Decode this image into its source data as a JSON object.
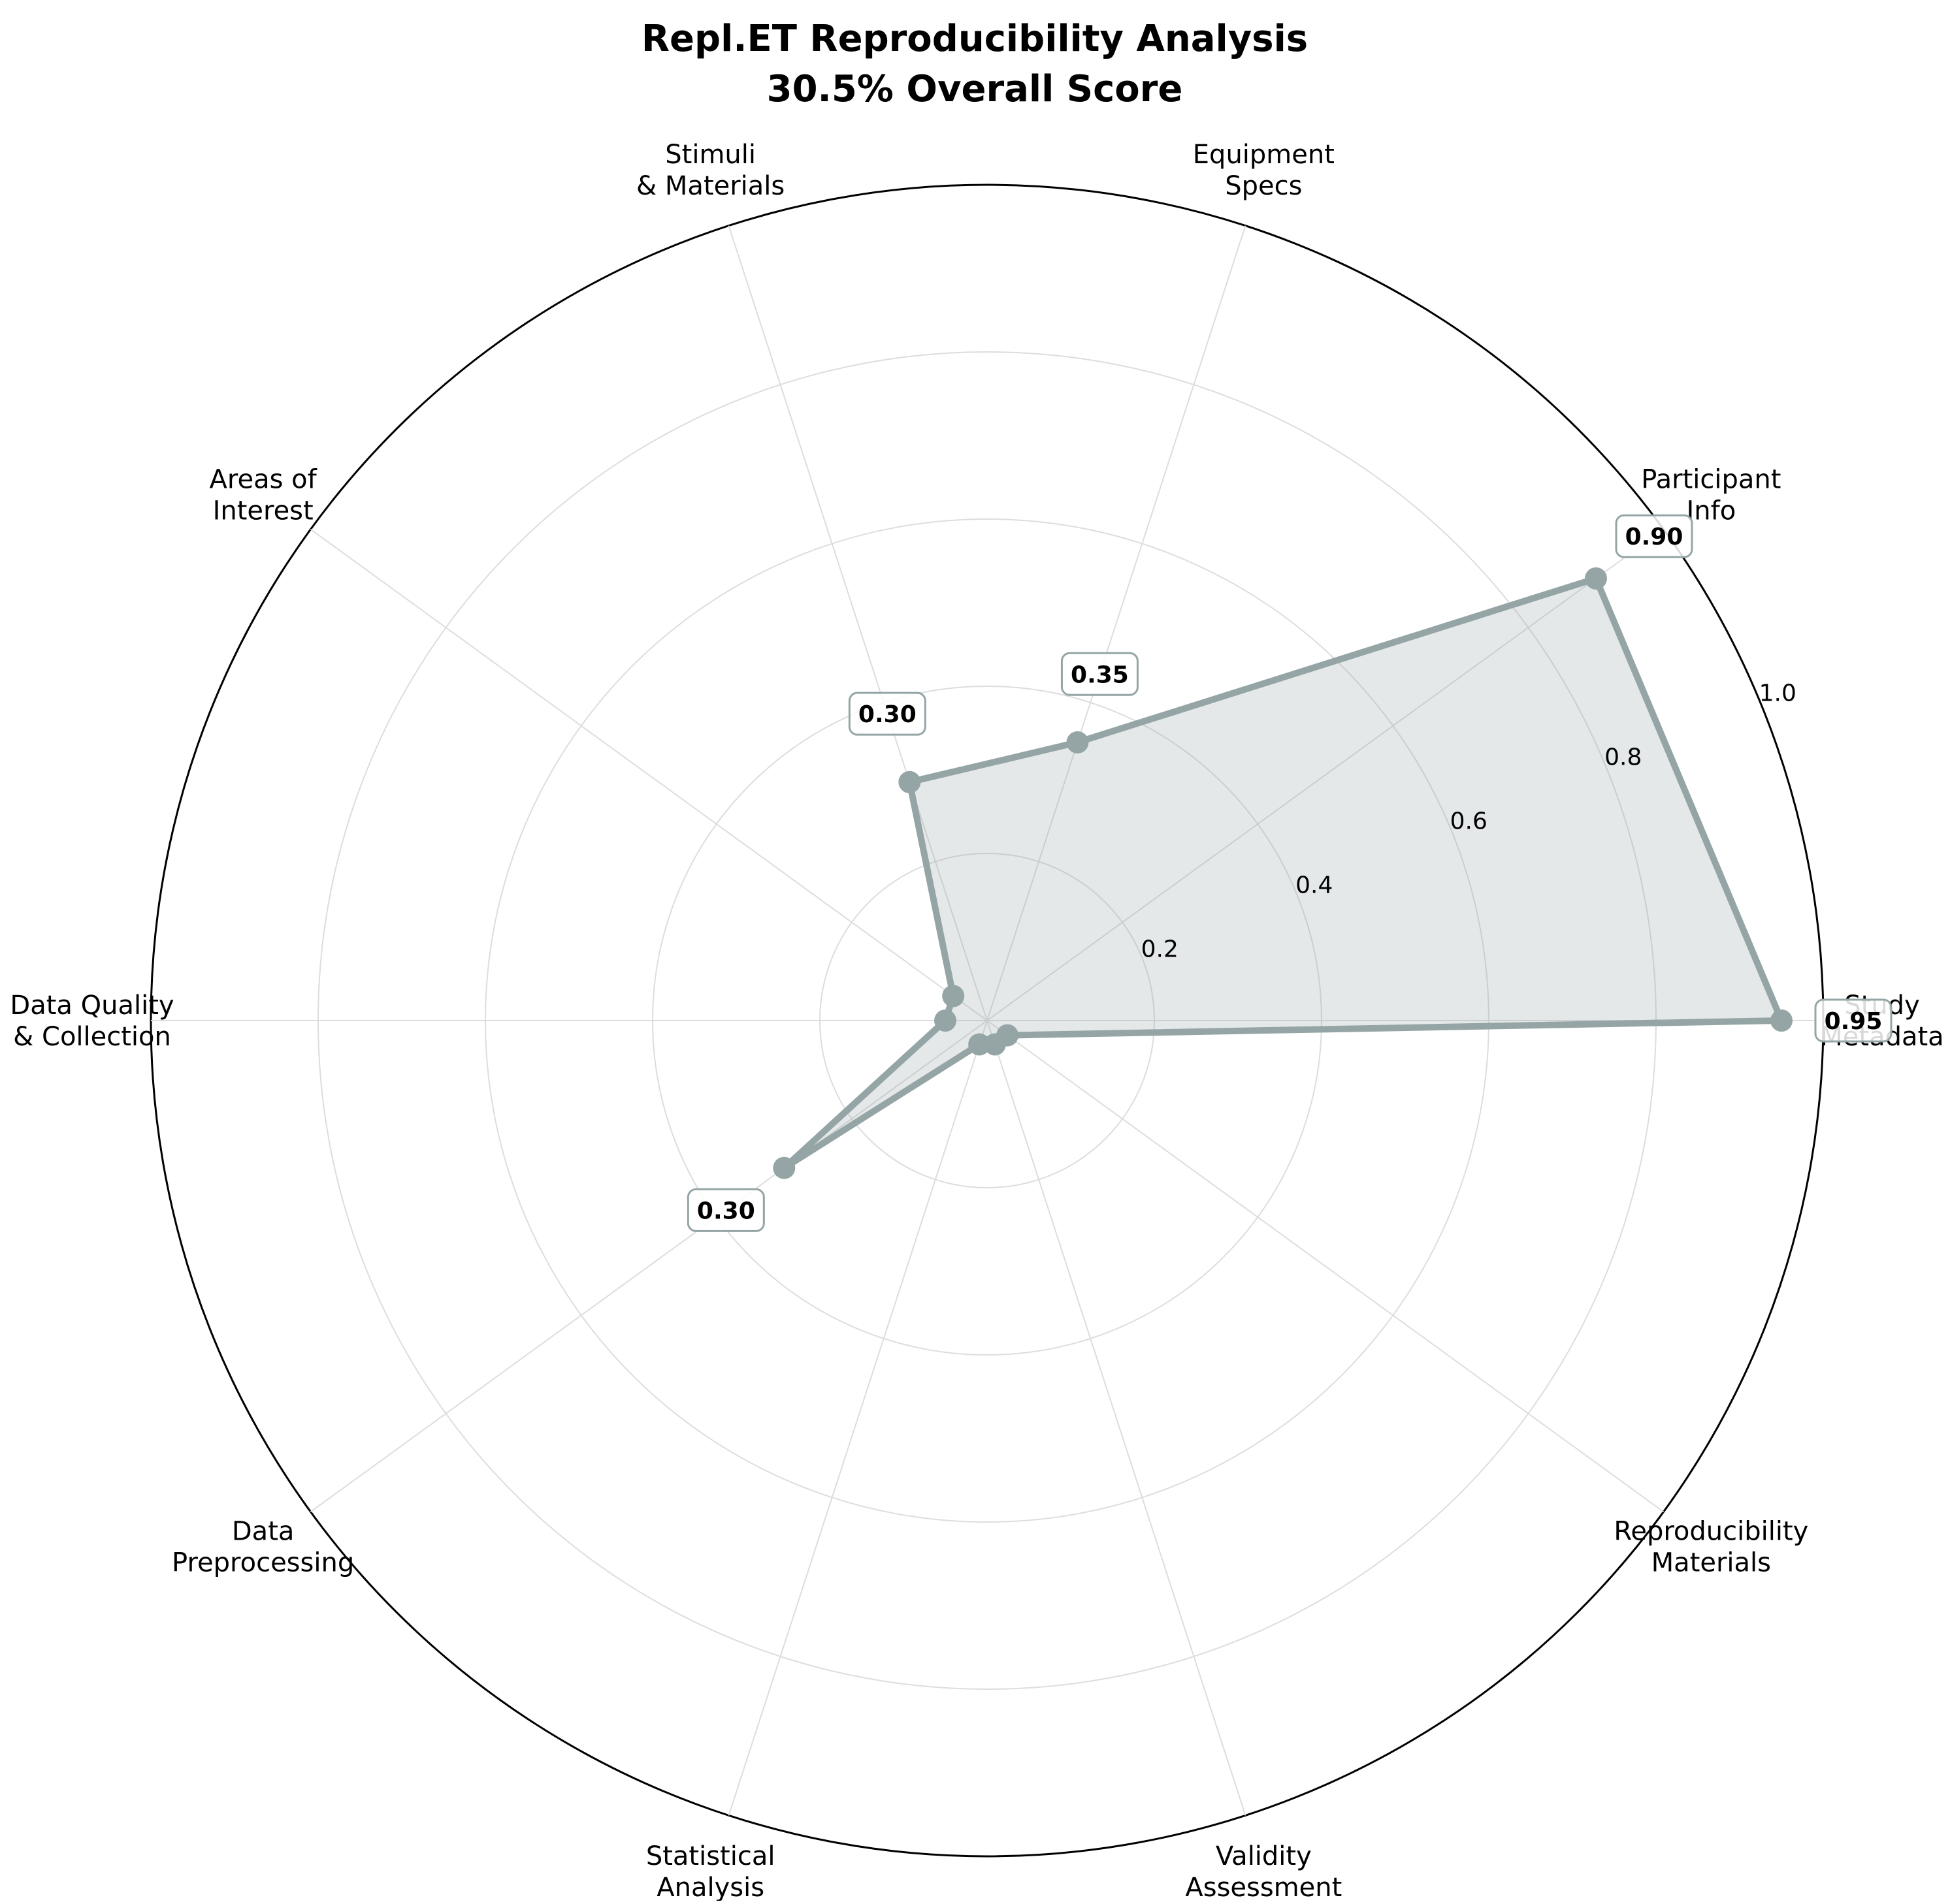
{
  "chart_data": {
    "type": "radar",
    "title": "Repl.ET Reproducibility Analysis",
    "subtitle": "30.5% Overall Score",
    "categories": [
      [
        "Study",
        "Metadata"
      ],
      [
        "Participant",
        "Info"
      ],
      [
        "Equipment",
        "Specs"
      ],
      [
        "Stimuli",
        "& Materials"
      ],
      [
        "Areas of",
        "Interest"
      ],
      [
        "Data Quality",
        "& Collection"
      ],
      [
        "Data",
        "Preprocessing"
      ],
      [
        "Statistical",
        "Analysis"
      ],
      [
        "Validity",
        "Assessment"
      ],
      [
        "Reproducibility",
        "Materials"
      ]
    ],
    "values": [
      0.95,
      0.9,
      0.35,
      0.3,
      0.05,
      0.05,
      0.3,
      0.03,
      0.03,
      0.03
    ],
    "value_labels": [
      "0.95",
      "0.90",
      "0.35",
      "0.30",
      "",
      "",
      "0.30",
      "",
      "",
      ""
    ],
    "rlim": [
      0,
      1.0
    ],
    "rticks": [
      0.2,
      0.4,
      0.6,
      0.8,
      1.0
    ],
    "rtick_labels": [
      "0.2",
      "0.4",
      "0.6",
      "0.8",
      "1.0"
    ],
    "grid": true,
    "colors": {
      "series": "#95a5a6",
      "fill": "#95a5a6",
      "grid": "#dddddd",
      "outer": "#000000",
      "label_box_edge": "#95a5a6"
    }
  }
}
